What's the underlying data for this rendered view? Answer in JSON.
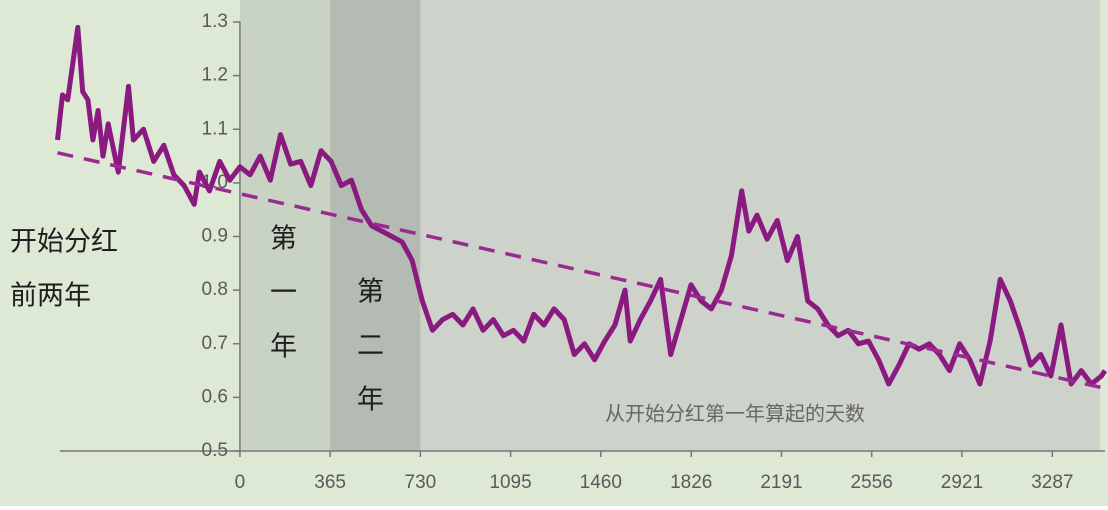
{
  "chart_data": {
    "type": "line",
    "xlabel": "从开始分红第一年算起的天数",
    "annotations": [
      [
        "开始分红",
        "前两年"
      ],
      [
        "第",
        "一",
        "年"
      ],
      [
        "第",
        "二",
        "年"
      ]
    ],
    "xlim": [
      -728,
      3500
    ],
    "ylim": [
      0.5,
      1.3
    ],
    "xticks": [
      0,
      365,
      730,
      1095,
      1460,
      1826,
      2191,
      2556,
      2921,
      3287
    ],
    "yticks": [
      0.5,
      0.6,
      0.7,
      0.8,
      0.9,
      {
        "value": 1,
        "label": "1.0"
      },
      1.1,
      1.2,
      1.3
    ],
    "background": "#dde8d5",
    "shade_colors": [
      "#c9d3c3",
      "#b4bbb2",
      "#cdd2ca"
    ],
    "series": [
      {
        "color": "#8a1a80",
        "style": "solid",
        "x": [
          -738,
          -718,
          -697,
          -677,
          -656,
          -636,
          -615,
          -595,
          -574,
          -554,
          -533,
          -492,
          -451,
          -431,
          -390,
          -349,
          -308,
          -267,
          -226,
          -185,
          -164,
          -123,
          -82,
          -41,
          0,
          41,
          82,
          123,
          164,
          205,
          246,
          287,
          328,
          369,
          410,
          451,
          492,
          533,
          574,
          615,
          656,
          697,
          738,
          779,
          820,
          861,
          902,
          943,
          984,
          1025,
          1066,
          1107,
          1148,
          1189,
          1230,
          1271,
          1312,
          1353,
          1394,
          1435,
          1476,
          1517,
          1558,
          1579,
          1620,
          1661,
          1702,
          1743,
          1784,
          1825,
          1866,
          1907,
          1948,
          1989,
          2030,
          2059,
          2092,
          2133,
          2174,
          2215,
          2256,
          2297,
          2338,
          2379,
          2420,
          2461,
          2502,
          2543,
          2584,
          2625,
          2666,
          2707,
          2748,
          2789,
          2830,
          2871,
          2912,
          2953,
          2994,
          3035,
          3076,
          3117,
          3158,
          3199,
          3240,
          3281,
          3322,
          3363,
          3404,
          3445,
          3486,
          3500
        ],
        "values": [
          1.08,
          1.164,
          1.155,
          1.22,
          1.29,
          1.17,
          1.155,
          1.08,
          1.135,
          1.05,
          1.11,
          1.02,
          1.18,
          1.08,
          1.1,
          1.04,
          1.07,
          1.015,
          0.995,
          0.96,
          1.02,
          0.985,
          1.04,
          1.005,
          1.03,
          1.015,
          1.05,
          1.005,
          1.09,
          1.035,
          1.04,
          0.995,
          1.06,
          1.04,
          0.995,
          1.005,
          0.95,
          0.92,
          0.91,
          0.9,
          0.89,
          0.855,
          0.78,
          0.725,
          0.745,
          0.755,
          0.735,
          0.765,
          0.725,
          0.745,
          0.715,
          0.725,
          0.705,
          0.755,
          0.735,
          0.765,
          0.745,
          0.68,
          0.7,
          0.67,
          0.705,
          0.735,
          0.8,
          0.705,
          0.745,
          0.78,
          0.82,
          0.68,
          0.745,
          0.81,
          0.78,
          0.765,
          0.8,
          0.865,
          0.985,
          0.91,
          0.94,
          0.895,
          0.93,
          0.855,
          0.9,
          0.78,
          0.765,
          0.735,
          0.715,
          0.725,
          0.7,
          0.705,
          0.67,
          0.625,
          0.66,
          0.7,
          0.69,
          0.7,
          0.68,
          0.65,
          0.7,
          0.67,
          0.625,
          0.705,
          0.82,
          0.78,
          0.725,
          0.66,
          0.68,
          0.64,
          0.735,
          0.625,
          0.65,
          0.625,
          0.64,
          0.65
        ]
      },
      {
        "color": "#9a2a90",
        "style": "dashed",
        "x": [
          -738,
          3500
        ],
        "values": [
          1.056,
          0.617
        ]
      }
    ]
  }
}
